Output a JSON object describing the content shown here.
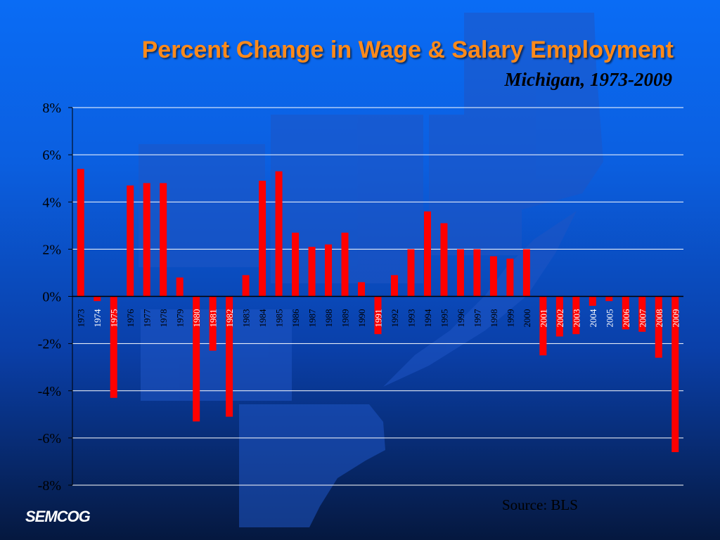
{
  "title": "Percent Change in Wage & Salary Employment",
  "subtitle": "Michigan, 1973-2009",
  "source": "Source: BLS",
  "logo": "SEMCOG",
  "colors": {
    "bar": "#ff0000",
    "title": "#ff8a1a",
    "grid": "#ffffff"
  },
  "chart_data": {
    "type": "bar",
    "title": "Percent Change in Wage & Salary Employment",
    "subtitle": "Michigan, 1973-2009",
    "xlabel": "",
    "ylabel": "",
    "ylim": [
      -8,
      8
    ],
    "yticks": [
      8,
      6,
      4,
      2,
      0,
      -2,
      -4,
      -6,
      -8
    ],
    "ytick_labels": [
      "8%",
      "6%",
      "4%",
      "2%",
      "0%",
      "-2%",
      "-4%",
      "-6%",
      "-8%"
    ],
    "grid": true,
    "legend": "none",
    "categories": [
      "1973",
      "1974",
      "1975",
      "1976",
      "1977",
      "1978",
      "1979",
      "1980",
      "1981",
      "1982",
      "1983",
      "1984",
      "1985",
      "1986",
      "1987",
      "1988",
      "1989",
      "1990",
      "1991",
      "1992",
      "1993",
      "1994",
      "1995",
      "1996",
      "1997",
      "1998",
      "1999",
      "2000",
      "2001",
      "2002",
      "2003",
      "2004",
      "2005",
      "2006",
      "2007",
      "2008",
      "2009"
    ],
    "values": [
      5.4,
      -0.2,
      -4.3,
      4.7,
      4.8,
      4.8,
      0.8,
      -5.3,
      -2.3,
      -5.1,
      0.9,
      4.9,
      5.3,
      2.7,
      2.1,
      2.2,
      2.7,
      0.6,
      -1.6,
      0.9,
      2.0,
      3.6,
      3.1,
      2.0,
      2.0,
      1.7,
      1.6,
      2.0,
      -2.5,
      -1.7,
      -1.6,
      -0.4,
      -0.2,
      -1.4,
      -1.5,
      -2.6,
      -6.6
    ]
  }
}
